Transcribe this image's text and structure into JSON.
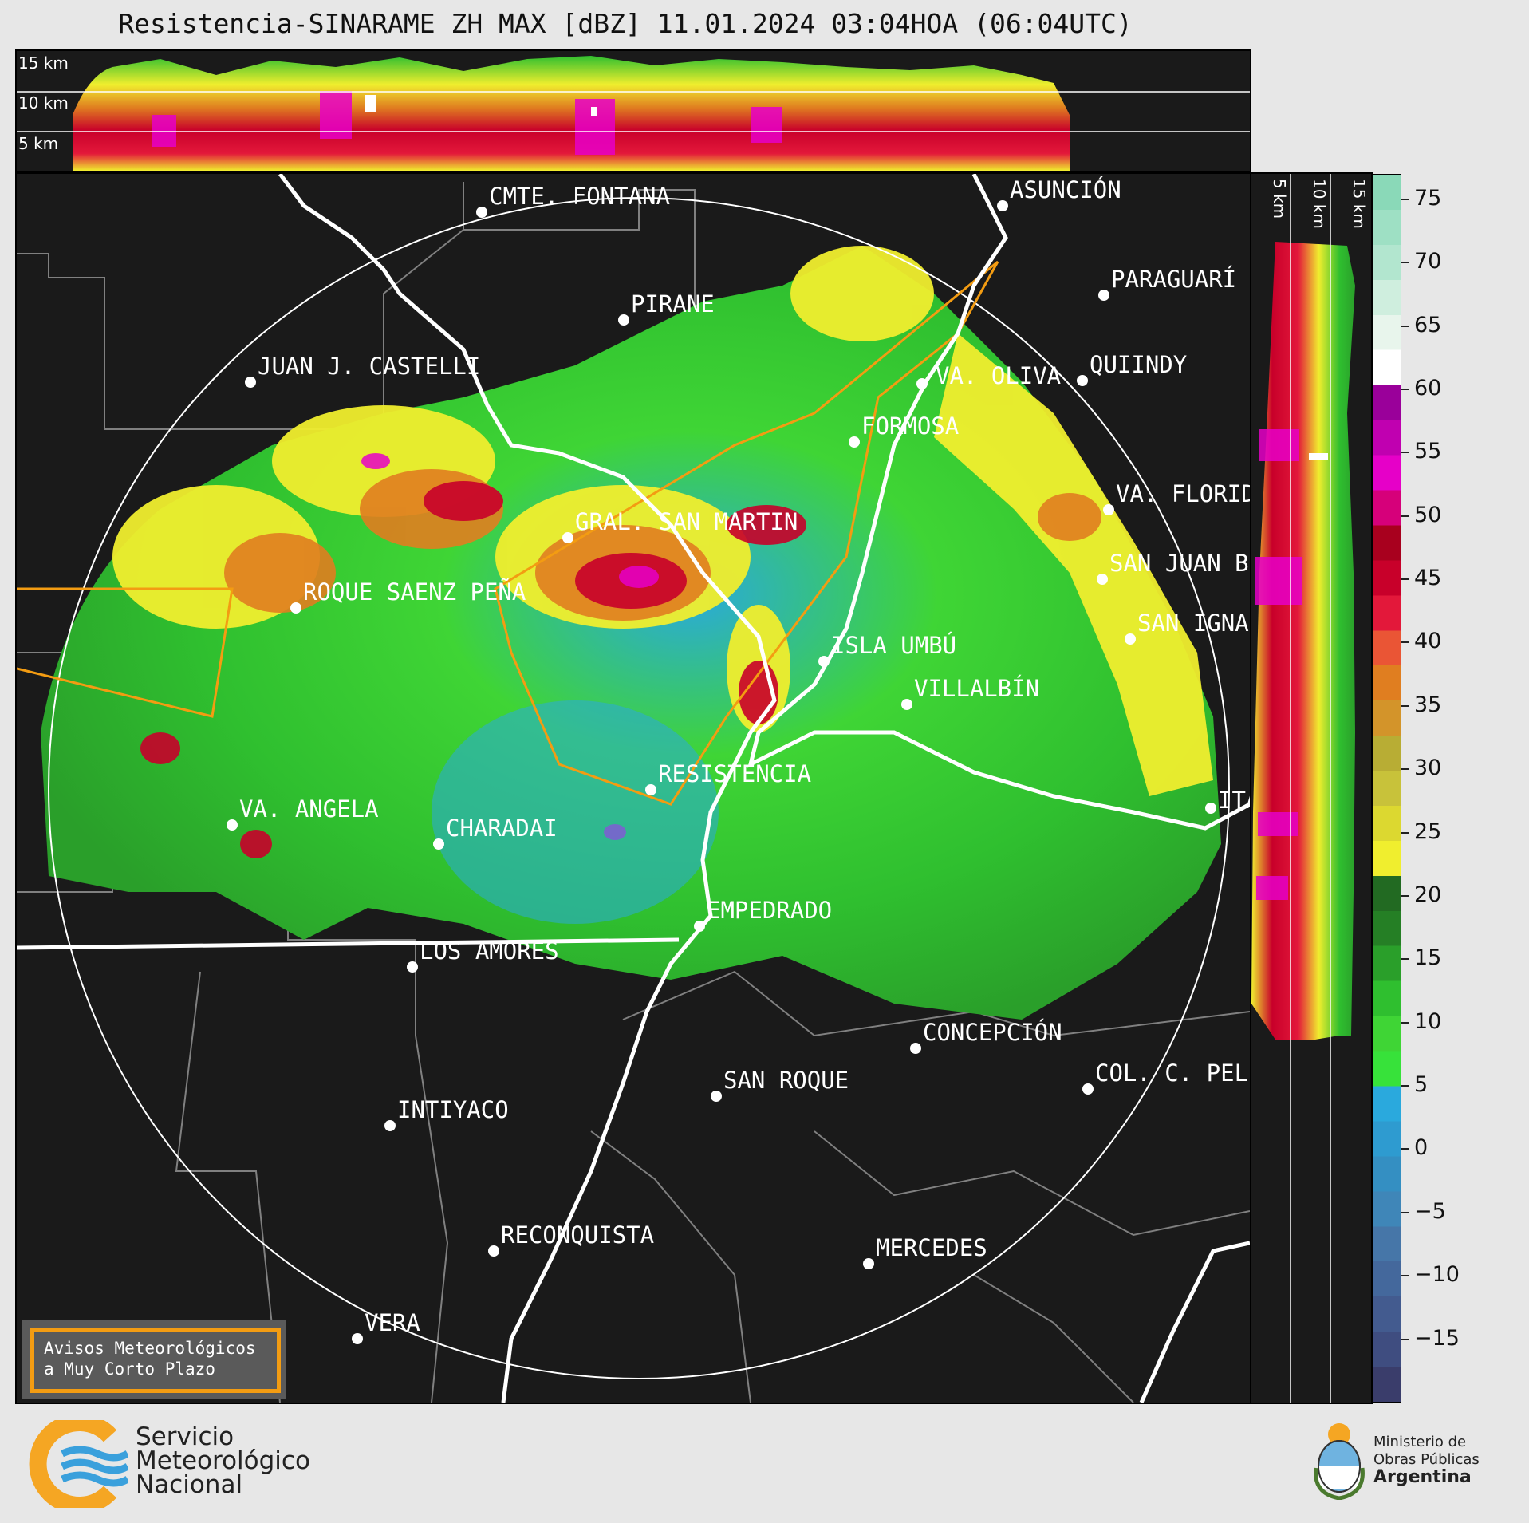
{
  "title": "Resistencia-SINARAME ZH MAX [dBZ] 11.01.2024 03:04HOA (06:04UTC)",
  "profile_top": {
    "altitude_labels": [
      "15 km",
      "10 km",
      "5 km"
    ]
  },
  "profile_side": {
    "altitude_labels": [
      "5 km",
      "10 km",
      "15 km"
    ]
  },
  "colorbar": {
    "unit": "dBZ",
    "ticks": [
      "75",
      "70",
      "65",
      "60",
      "55",
      "50",
      "45",
      "40",
      "35",
      "30",
      "25",
      "20",
      "15",
      "10",
      "5",
      "0",
      "−5",
      "−10",
      "−15"
    ],
    "range": [
      -20,
      77
    ],
    "colors": [
      "#3a3d6b",
      "#3f4d80",
      "#435b8f",
      "#44689c",
      "#4676a8",
      "#3f86b8",
      "#348fc2",
      "#2e9bd0",
      "#2aa9dd",
      "#37e23a",
      "#3fd535",
      "#2fbf2f",
      "#2a9f2a",
      "#257f25",
      "#226a22",
      "#f0ee2e",
      "#dcd830",
      "#c8c23a",
      "#b8ad34",
      "#d3942a",
      "#e07e20",
      "#ea5535",
      "#e3183a",
      "#c8002a",
      "#a8001e",
      "#d6007a",
      "#e600c8",
      "#c000b0",
      "#9a009a",
      "#ffffff",
      "#e8f5ec",
      "#cfeede",
      "#b2e6cf",
      "#9ee0c4",
      "#8ad9b8"
    ]
  },
  "cities": [
    {
      "name": "CMTE. FONTANA"
    },
    {
      "name": "ASUNCIÓN"
    },
    {
      "name": "PIRANE"
    },
    {
      "name": "PARAGUARÍ"
    },
    {
      "name": "JUAN J. CASTELLI"
    },
    {
      "name": "VA. OLIVA"
    },
    {
      "name": "QUIINDY"
    },
    {
      "name": "FORMOSA"
    },
    {
      "name": "VA. FLORIDA"
    },
    {
      "name": "GRAL. SAN MARTIN"
    },
    {
      "name": "SAN JUAN B."
    },
    {
      "name": "ROQUE SAENZ PEÑA"
    },
    {
      "name": "SAN IGNACIO"
    },
    {
      "name": "ISLA UMBÚ"
    },
    {
      "name": "VILLALBÍN"
    },
    {
      "name": "RESISTENCIA"
    },
    {
      "name": "ITÁ"
    },
    {
      "name": "VA. ANGELA"
    },
    {
      "name": "CHARADAI"
    },
    {
      "name": "EMPEDRADO"
    },
    {
      "name": "LOS AMORES"
    },
    {
      "name": "CONCEPCIÓN"
    },
    {
      "name": "SAN ROQUE"
    },
    {
      "name": "COL. C. PELLEGRINI"
    },
    {
      "name": "INTIYACO"
    },
    {
      "name": "RECONQUISTA"
    },
    {
      "name": "MERCEDES"
    },
    {
      "name": "VERA"
    }
  ],
  "avisos": {
    "line1": "Avisos Meteorológicos",
    "line2": "a Muy Corto Plazo"
  },
  "smn": {
    "line1": "Servicio",
    "line2": "Meteorológico",
    "line3": "Nacional"
  },
  "ministerio": {
    "line1": "Ministerio de",
    "line2": "Obras Públicas",
    "line3": "Argentina"
  }
}
